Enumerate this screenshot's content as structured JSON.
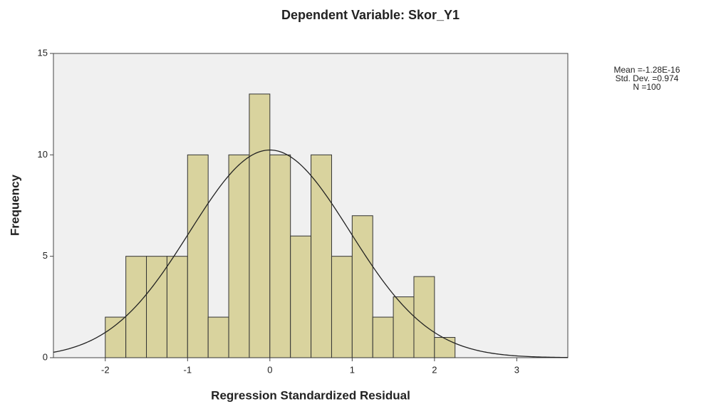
{
  "chart_data": {
    "type": "histogram",
    "title": "Dependent Variable: Skor_Y1",
    "xlabel": "Regression Standardized Residual",
    "ylabel": "Frequency",
    "bins": [
      -2,
      -1.75,
      -1.5,
      -1.25,
      -1,
      -0.75,
      -0.5,
      -0.25,
      0,
      0.25,
      0.5,
      0.75,
      1,
      1.25,
      1.5,
      1.75,
      2,
      2.25
    ],
    "values": [
      2,
      5,
      5,
      5,
      10,
      2,
      10,
      13,
      10,
      6,
      10,
      5,
      7,
      2,
      3,
      4,
      1
    ],
    "color": "#d9d39e",
    "xlim": [
      -2.63,
      3.62
    ],
    "xticks": [
      -2,
      -1,
      0,
      1,
      2,
      3
    ],
    "ylim": [
      0,
      15
    ],
    "yticks": [
      0,
      5,
      10,
      15
    ],
    "stats": [
      {
        "value": -1.28e-16,
        "label": "Mean =-1.28E-16"
      },
      {
        "value": 0.974,
        "label": "Std. Dev. =0.974"
      },
      {
        "value": 100,
        "label": "N =100"
      }
    ]
  }
}
